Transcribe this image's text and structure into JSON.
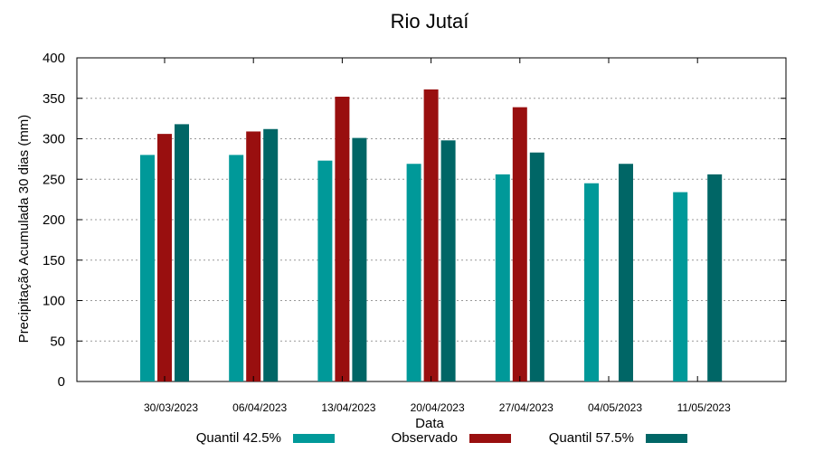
{
  "chart_data": {
    "type": "bar",
    "title": "Rio Jutaí",
    "xlabel": "Data",
    "ylabel": "Precipitação Acumulada 30 dias (mm)",
    "ylim": [
      0,
      400
    ],
    "yticks": [
      0,
      50,
      100,
      150,
      200,
      250,
      300,
      350,
      400
    ],
    "grid": "horizontal dotted",
    "legend": "bottom",
    "categories": [
      "30/03/2023",
      "06/04/2023",
      "13/04/2023",
      "20/04/2023",
      "27/04/2023",
      "04/05/2023",
      "11/05/2023"
    ],
    "series": [
      {
        "name": "Quantil 42.5%",
        "color": "#009999",
        "values": [
          280,
          280,
          273,
          269,
          256,
          245,
          234
        ]
      },
      {
        "name": "Observado",
        "color": "#990f0f",
        "values": [
          306,
          309,
          352,
          361,
          339,
          null,
          null
        ]
      },
      {
        "name": "Quantil 57.5%",
        "color": "#006666",
        "values": [
          318,
          312,
          301,
          298,
          283,
          269,
          256
        ]
      }
    ]
  }
}
